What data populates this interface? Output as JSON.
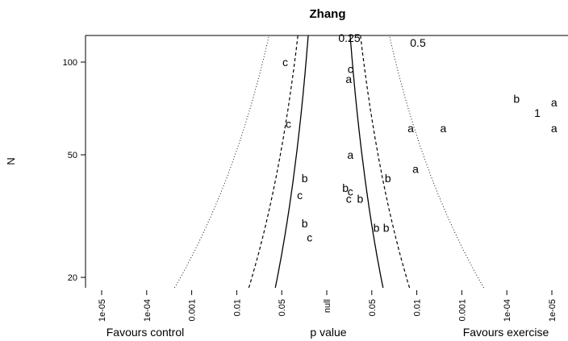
{
  "chart_data": {
    "type": "scatter",
    "title": "Zhang",
    "ylabel": "N",
    "xlabel": "p value",
    "footer_left": "Favours control",
    "footer_right": "Favours exercise",
    "y_scale": "log",
    "ylim": [
      18.5,
      122
    ],
    "y_ticks": [
      {
        "value": 20,
        "label": "20"
      },
      {
        "value": 50,
        "label": "50"
      },
      {
        "value": 100,
        "label": "100"
      }
    ],
    "x_ticks": [
      "1e-05",
      "1e-04",
      "0.001",
      "0.01",
      "0.05",
      "null",
      "0.05",
      "0.01",
      "0.001",
      "1e-04",
      "1e-05"
    ],
    "contour_labels": [
      "0.25",
      "0.5",
      "1"
    ],
    "points": [
      {
        "x": -0.27,
        "y": 100,
        "label": "c"
      },
      {
        "x": 0.13,
        "y": 95,
        "label": "c"
      },
      {
        "x": 0.12,
        "y": 88,
        "label": "a"
      },
      {
        "x": -0.25,
        "y": 63,
        "label": "c"
      },
      {
        "x": 0.13,
        "y": 50,
        "label": "a"
      },
      {
        "x": -0.15,
        "y": 42,
        "label": "b"
      },
      {
        "x": -0.18,
        "y": 37,
        "label": "c"
      },
      {
        "x": 0.1,
        "y": 39,
        "label": "b"
      },
      {
        "x": 0.13,
        "y": 38,
        "label": "c"
      },
      {
        "x": 0.12,
        "y": 36,
        "label": "c"
      },
      {
        "x": 0.19,
        "y": 36,
        "label": "b"
      },
      {
        "x": 0.36,
        "y": 42,
        "label": "b"
      },
      {
        "x": -0.15,
        "y": 30,
        "label": "b"
      },
      {
        "x": -0.12,
        "y": 27,
        "label": "c"
      },
      {
        "x": 0.29,
        "y": 29,
        "label": "b"
      },
      {
        "x": 0.35,
        "y": 29,
        "label": "b"
      },
      {
        "x": 0.5,
        "y": 61,
        "label": "a"
      },
      {
        "x": 0.53,
        "y": 45,
        "label": "a"
      },
      {
        "x": 0.7,
        "y": 61,
        "label": "a"
      },
      {
        "x": 1.15,
        "y": 76,
        "label": "b"
      },
      {
        "x": 1.38,
        "y": 74,
        "label": "a"
      },
      {
        "x": 1.38,
        "y": 61,
        "label": "a"
      }
    ]
  }
}
